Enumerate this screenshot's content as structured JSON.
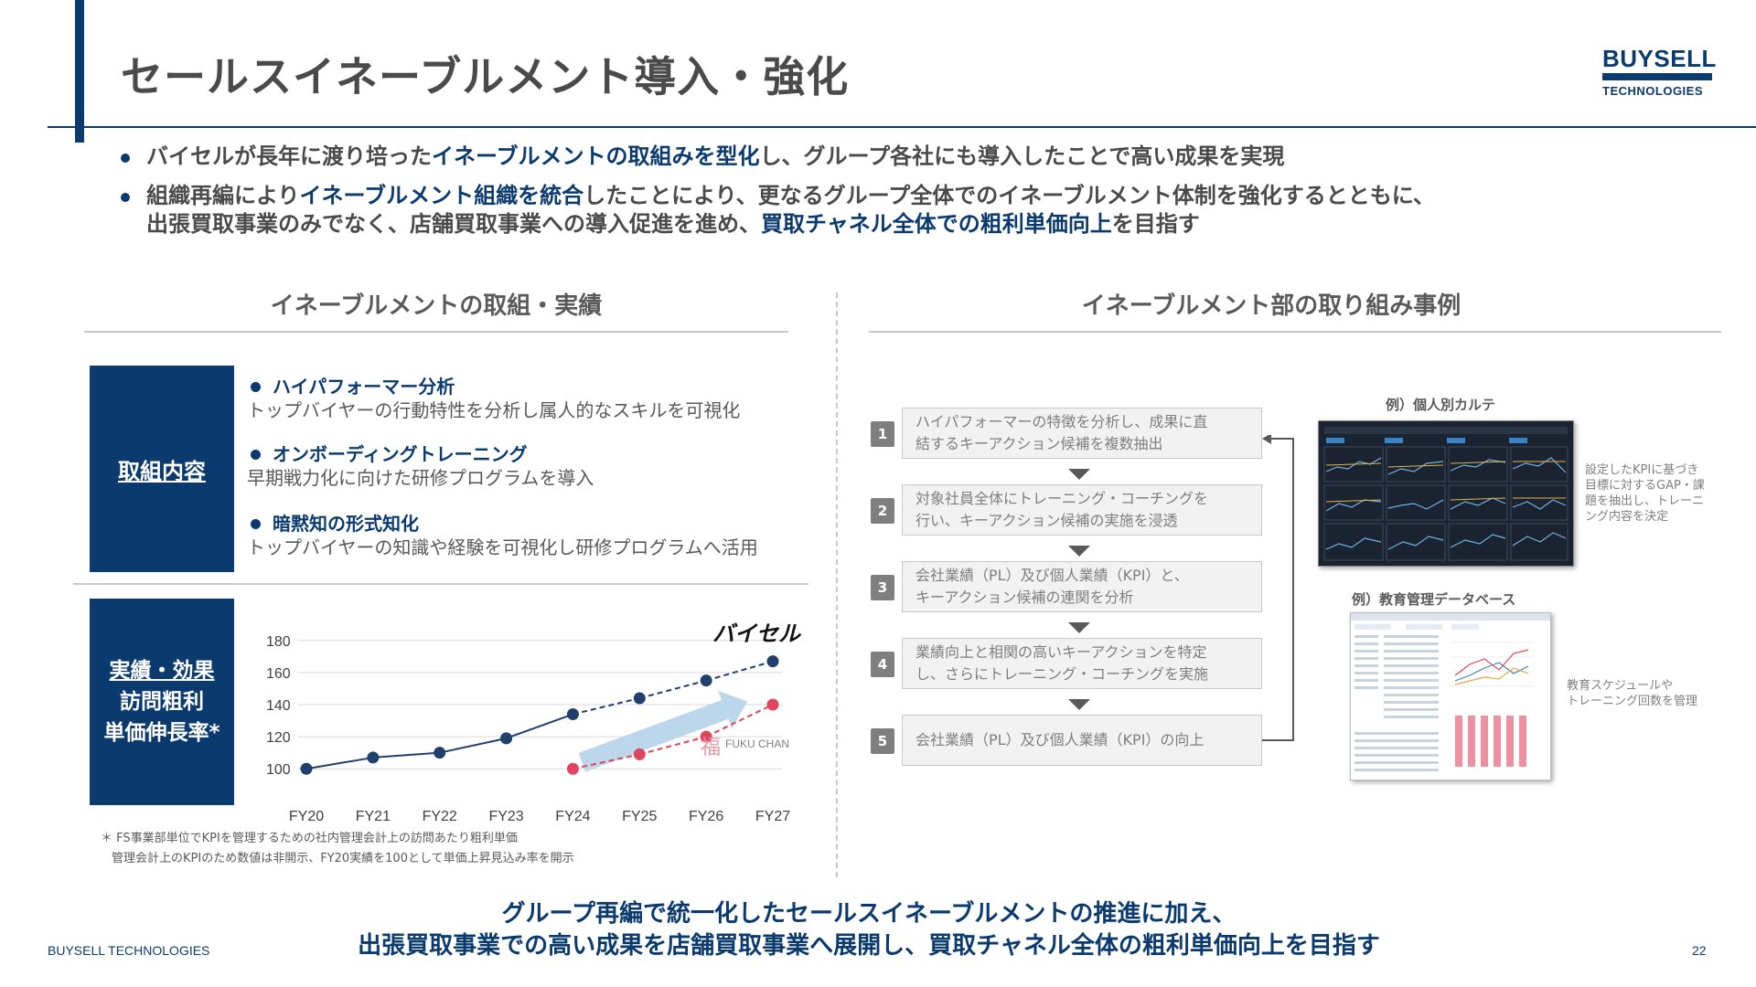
{
  "title": "セールスイネーブルメント導入・強化",
  "logo": {
    "top": "BUYSELL",
    "bottom": "TECHNOLOGIES"
  },
  "bullets": [
    {
      "before": "バイセルが長年に渡り培った",
      "highlight": "イネーブルメントの取組みを型化",
      "after": "し、グループ各社にも導入したことで高い成果を実現"
    },
    {
      "before": "組織再編により",
      "highlight": "イネーブルメント組織を統合",
      "after": "したことにより、更なるグループ全体でのイネーブルメント体制を強化するとともに、",
      "line2_before": "出張買取事業のみでなく、店舗買取事業への導入促進を進め、",
      "line2_highlight": "買取チャネル全体での粗利単価向上",
      "line2_after": "を目指す"
    }
  ],
  "left": {
    "heading": "イネーブルメントの取組・実績",
    "box1_label": "取組内容",
    "items": [
      {
        "title": "ハイパフォーマー分析",
        "desc": "トップバイヤーの行動特性を分析し属人的なスキルを可視化"
      },
      {
        "title": "オンボーディングトレーニング",
        "desc": "早期戦力化に向けた研修プログラムを導入"
      },
      {
        "title": "暗黙知の形式知化",
        "desc": "トップバイヤーの知識や経験を可視化し研修プログラムへ活用"
      }
    ],
    "box2_line1": "実績・効果",
    "box2_line2": "訪問粗利",
    "box2_line3": "単価伸長率*",
    "brand1": "バイセル",
    "brand2": "FUKU CHAN",
    "brand2_mark": "福",
    "footnote1": "＊ FS事業部単位でKPIを管理するための社内管理会計上の訪問あたり粗利単価",
    "footnote2": "管理会計上のKPIのため数値は非開示、FY20実績を100として単価上昇見込み率を開示"
  },
  "chart_data": {
    "type": "line",
    "categories": [
      "FY20",
      "FY21",
      "FY22",
      "FY23",
      "FY24",
      "FY25",
      "FY26",
      "FY27"
    ],
    "yticks": [
      100,
      120,
      140,
      160,
      180
    ],
    "ylim": [
      95,
      185
    ],
    "series": [
      {
        "name": "バイセル",
        "values": [
          100,
          107,
          110,
          119,
          134,
          144,
          155,
          167
        ],
        "color": "#1f3f6e",
        "dashed_from_index": 4
      },
      {
        "name": "FUKU CHAN",
        "values": [
          null,
          null,
          null,
          null,
          100,
          109,
          120,
          140
        ],
        "color": "#e0455e",
        "dashed_from_index": 4
      }
    ],
    "trend_arrow": true
  },
  "right": {
    "heading": "イネーブルメント部の取り組み事例",
    "steps": [
      {
        "num": "1",
        "line1": "ハイパフォーマーの特徴を分析し、成果に直",
        "line2": "結するキーアクション候補を複数抽出"
      },
      {
        "num": "2",
        "line1": "対象社員全体にトレーニング・コーチングを",
        "line2": "行い、キーアクション候補の実施を浸透"
      },
      {
        "num": "3",
        "line1": "会社業績（PL）及び個人業績（KPI）と、",
        "line2": "キーアクション候補の連関を分析"
      },
      {
        "num": "4",
        "line1": "業績向上と相関の高いキーアクションを特定",
        "line2": "し、さらにトレーニング・コーチングを実施"
      },
      {
        "num": "5",
        "line1": "会社業績（PL）及び個人業績（KPI）の向上",
        "line2": ""
      }
    ],
    "example1_caption": "例）個人別カルテ",
    "example1_note": [
      "設定したKPIに基づき",
      "目標に対するGAP・課",
      "題を抽出し、トレーニ",
      "ング内容を決定"
    ],
    "example2_caption": "例）教育管理データベース",
    "example2_note": [
      "教育スケジュールや",
      "トレーニング回数を管理"
    ]
  },
  "conclusion": [
    "グループ再編で統一化したセールスイネーブルメントの推進に加え、",
    "出張買取事業での高い成果を店舗買取事業へ展開し、買取チャネル全体の粗利単価向上を目指す"
  ],
  "footer": {
    "brand": "BUYSELL TECHNOLOGIES",
    "page": "22"
  },
  "colors": {
    "navy": "#0b3b6e",
    "pink": "#e0455e",
    "arrow": "#bcd7ec"
  }
}
